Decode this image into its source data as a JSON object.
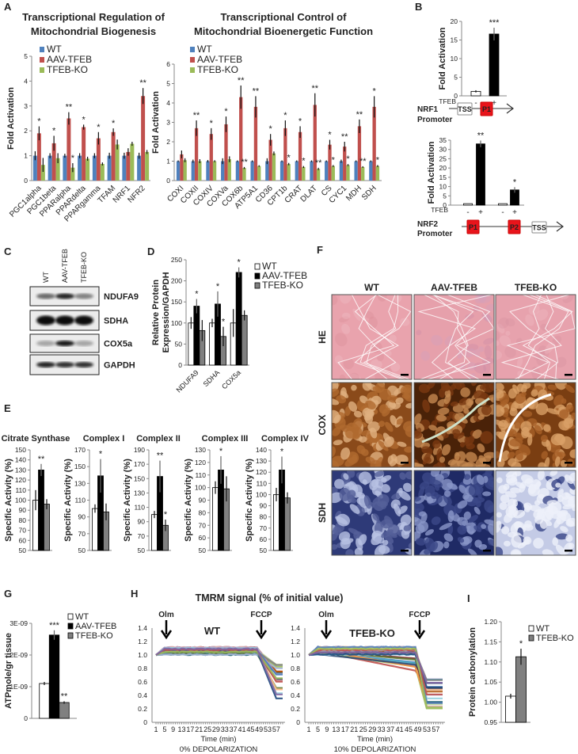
{
  "panels": {
    "a": "A",
    "b": "B",
    "c": "C",
    "d": "D",
    "e": "E",
    "f": "F",
    "g": "G",
    "h": "H",
    "i": "I"
  },
  "panel_a": {
    "title_left": [
      "Transcriptional Regulation of",
      "Mitochondrial Biogenesis"
    ],
    "title_right": [
      "Transcriptional Control of",
      "Mitochondrial Bioenergetic Function"
    ]
  },
  "panel_b": {
    "tfeb": "TFEB",
    "nrf1": "NRF1",
    "nrf2": "NRF2",
    "promoter": "Promoter",
    "tss": "TSS",
    "p1": "P1",
    "p2": "P2"
  },
  "panel_c": {
    "lanes": [
      "WT",
      "AAV-TFEB",
      "TFEB-KO"
    ],
    "proteins": [
      "NDUFA9",
      "SDHA",
      "COX5a",
      "GAPDH"
    ]
  },
  "panel_e": {
    "titles": [
      "Citrate Synthase",
      "Complex I",
      "Complex II",
      "Complex III",
      "Complex IV"
    ]
  },
  "panel_f": {
    "columns": [
      "WT",
      "AAV-TFEB",
      "TFEB-KO"
    ],
    "rows": [
      "HE",
      "COX",
      "SDH"
    ]
  },
  "panel_h": {
    "title": "TMRM signal (% of initial value)"
  },
  "chart_data": [
    {
      "type": "bar",
      "ylabel": "Fold Activation",
      "ylim": [
        0,
        5
      ],
      "yticks": [
        "0",
        "1",
        "2",
        "3",
        "4",
        "5"
      ],
      "legend": "top-left",
      "categories": [
        "PGC1alpha",
        "PGC1beta",
        "PPARalpha",
        "PPARdelta",
        "PPARgamma",
        "TFAM",
        "NRF1",
        "NFR2"
      ],
      "series": [
        {
          "name": "WT",
          "color": "#4f81bd",
          "values": [
            1,
            1,
            1,
            1,
            1,
            1,
            1,
            1
          ],
          "errors": [
            0.18,
            0.1,
            0.08,
            0.1,
            0.1,
            0.12,
            0.12,
            0.12
          ],
          "stars": [
            "",
            "",
            "",
            "",
            "",
            "",
            "",
            ""
          ]
        },
        {
          "name": "AAV-TFEB",
          "color": "#c0504d",
          "values": [
            1.9,
            1.5,
            2.5,
            2.15,
            1.7,
            1.95,
            1.15,
            3.4
          ],
          "errors": [
            0.28,
            0.3,
            0.25,
            0.1,
            0.25,
            0.15,
            0.15,
            0.32
          ],
          "stars": [
            "*",
            "*",
            "**",
            "*",
            "*",
            "*",
            "",
            "**"
          ]
        },
        {
          "name": "TFEB-KO",
          "color": "#9bbb59",
          "values": [
            0.63,
            0.9,
            0.52,
            0.88,
            0.67,
            1.45,
            1.48,
            1.15
          ],
          "errors": [
            0.28,
            0.2,
            0.18,
            0.08,
            0.06,
            0.2,
            0.08,
            0.08
          ],
          "stars": [
            "",
            "",
            "*",
            "",
            "",
            "",
            "",
            ""
          ]
        }
      ]
    },
    {
      "type": "bar",
      "ylabel": "Fold Activation",
      "ylim": [
        0,
        6
      ],
      "yticks": [
        "0",
        "1",
        "2",
        "3",
        "4",
        "5",
        "6"
      ],
      "legend": "top-left",
      "categories": [
        "COXI",
        "COXII",
        "COXIV",
        "COXVa",
        "COX6b",
        "ATP5A1",
        "CD36",
        "CPT1b",
        "CRAT",
        "DLAT",
        "CS",
        "CYC1",
        "MDH",
        "SDH"
      ],
      "series": [
        {
          "name": "WT",
          "color": "#4f81bd",
          "values": [
            1,
            1,
            1,
            1,
            1,
            1,
            1,
            1,
            1,
            1,
            1,
            1,
            1,
            1
          ],
          "errors": [
            0.04,
            0.08,
            0.06,
            0.15,
            0.04,
            0.04,
            0.15,
            0.04,
            0.04,
            0.04,
            0.04,
            0.08,
            0.04,
            0.04
          ],
          "stars": [
            "",
            "",
            "",
            "",
            "",
            "",
            "",
            "",
            "",
            "",
            "",
            "",
            "",
            ""
          ]
        },
        {
          "name": "AAV-TFEB",
          "color": "#c0504d",
          "values": [
            1.35,
            2.7,
            2.4,
            2.9,
            4.3,
            3.8,
            2.1,
            2.7,
            2.5,
            3.9,
            1.85,
            1.75,
            2.8,
            3.8
          ],
          "errors": [
            0.2,
            0.4,
            0.3,
            0.4,
            0.6,
            0.55,
            0.3,
            0.4,
            0.3,
            0.6,
            0.25,
            0.25,
            0.35,
            0.55
          ],
          "stars": [
            "",
            "**",
            "*",
            "*",
            "**",
            "**",
            "*",
            "*",
            "*",
            "**",
            "*",
            "**",
            "**",
            "*"
          ]
        },
        {
          "name": "TFEB-KO",
          "color": "#9bbb59",
          "values": [
            1.05,
            1.0,
            1.0,
            1.1,
            0.65,
            0.75,
            1.4,
            0.85,
            0.7,
            0.6,
            0.75,
            0.8,
            0.7,
            0.75
          ],
          "errors": [
            0.1,
            0.1,
            0.05,
            0.15,
            0.05,
            0.04,
            0.1,
            0.06,
            0.05,
            0.06,
            0.05,
            0.05,
            0.04,
            0.05
          ],
          "stars": [
            "",
            "",
            "",
            "",
            "**",
            "",
            "",
            "*",
            "*",
            "**",
            "*",
            "*",
            "**",
            "*"
          ]
        }
      ]
    },
    {
      "type": "bar",
      "ylabel": "Fold Activation",
      "ylim": [
        0,
        20
      ],
      "yticks": [
        "0",
        "5",
        "10",
        "15",
        "20"
      ],
      "categories": [
        "-",
        "+"
      ],
      "series": [
        {
          "colors": [
            "#ffffff",
            "#000000"
          ],
          "values": [
            1.2,
            16.6
          ],
          "errors": [
            0.3,
            1.7
          ],
          "stars": [
            "",
            "***"
          ]
        }
      ]
    },
    {
      "type": "bar",
      "ylabel": "Fold Activation",
      "ylim": [
        0,
        35
      ],
      "yticks": [
        "0",
        "5",
        "10",
        "15",
        "20",
        "25",
        "30",
        "35"
      ],
      "categories": [
        "-",
        "+",
        "-",
        "+"
      ],
      "series": [
        {
          "colors": [
            "#ffffff",
            "#000000",
            "#ffffff",
            "#000000"
          ],
          "values": [
            0.8,
            33,
            0.8,
            8.2
          ],
          "errors": [
            0,
            1.8,
            0,
            1.5
          ],
          "stars": [
            "",
            "**",
            "",
            "*"
          ]
        }
      ]
    },
    {
      "type": "bar",
      "ylabel": [
        "Relative Protein",
        "Expression/GAPDH"
      ],
      "ylim": [
        0,
        250
      ],
      "yticks": [
        "0",
        "50",
        "100",
        "150",
        "200",
        "250"
      ],
      "legend": "right",
      "categories": [
        "NDUFA9",
        "SDHA",
        "COX5a"
      ],
      "series": [
        {
          "name": "WT",
          "color": "#ffffff",
          "values": [
            100,
            100,
            100
          ],
          "errors": [
            14,
            10,
            33
          ],
          "stars": [
            "",
            "",
            ""
          ]
        },
        {
          "name": "AAV-TFEB",
          "color": "#000000",
          "values": [
            140,
            145,
            220
          ],
          "errors": [
            17,
            30,
            12
          ],
          "stars": [
            "*",
            "*",
            "*"
          ]
        },
        {
          "name": "TFEB-KO",
          "color": "#808080",
          "values": [
            82,
            68,
            118
          ],
          "errors": [
            25,
            23,
            12
          ],
          "stars": [
            "",
            "*",
            ""
          ]
        }
      ]
    },
    {
      "type": "bar",
      "title": "Citrate Synthase",
      "ylabel": "Specific Activity (%)",
      "ylim": [
        50,
        150
      ],
      "yticks": [
        "50",
        "60",
        "70",
        "80",
        "90",
        "100",
        "110",
        "120",
        "130",
        "140",
        "150"
      ],
      "categories": [
        ""
      ],
      "series": [
        {
          "name": "WT",
          "color": "#ffffff",
          "values": [
            100
          ],
          "errors": [
            10
          ],
          "stars": [
            ""
          ]
        },
        {
          "name": "AAV-TFEB",
          "color": "#000000",
          "values": [
            130
          ],
          "errors": [
            6
          ],
          "stars": [
            "**"
          ]
        },
        {
          "name": "TFEB-KO",
          "color": "#808080",
          "values": [
            96
          ],
          "errors": [
            5
          ],
          "stars": [
            ""
          ]
        }
      ]
    },
    {
      "type": "bar",
      "title": "Complex I",
      "ylabel": "Specific Activity (%)",
      "ylim": [
        50,
        170
      ],
      "yticks": [
        "50",
        "70",
        "90",
        "110",
        "130",
        "150",
        "170"
      ],
      "categories": [
        ""
      ],
      "series": [
        {
          "name": "WT",
          "color": "#ffffff",
          "values": [
            100
          ],
          "errors": [
            5
          ],
          "stars": [
            ""
          ]
        },
        {
          "name": "AAV-TFEB",
          "color": "#000000",
          "values": [
            139
          ],
          "errors": [
            20
          ],
          "stars": [
            "*"
          ]
        },
        {
          "name": "TFEB-KO",
          "color": "#808080",
          "values": [
            96
          ],
          "errors": [
            10
          ],
          "stars": [
            ""
          ]
        }
      ]
    },
    {
      "type": "bar",
      "title": "Complex II",
      "ylabel": "Specific Activity (%)",
      "ylim": [
        50,
        190
      ],
      "yticks": [
        "50",
        "70",
        "90",
        "110",
        "130",
        "150",
        "170",
        "190"
      ],
      "categories": [
        ""
      ],
      "series": [
        {
          "name": "WT",
          "color": "#ffffff",
          "values": [
            100
          ],
          "errors": [
            5
          ],
          "stars": [
            ""
          ]
        },
        {
          "name": "AAV-TFEB",
          "color": "#000000",
          "values": [
            153
          ],
          "errors": [
            22
          ],
          "stars": [
            "**"
          ]
        },
        {
          "name": "TFEB-KO",
          "color": "#808080",
          "values": [
            85
          ],
          "errors": [
            8
          ],
          "stars": [
            "*"
          ]
        }
      ]
    },
    {
      "type": "bar",
      "title": "Complex III",
      "ylabel": "Specific Activity (%)",
      "ylim": [
        50,
        130
      ],
      "yticks": [
        "50",
        "60",
        "70",
        "80",
        "90",
        "100",
        "110",
        "120",
        "130"
      ],
      "categories": [
        ""
      ],
      "series": [
        {
          "name": "WT",
          "color": "#ffffff",
          "values": [
            100
          ],
          "errors": [
            5
          ],
          "stars": [
            ""
          ]
        },
        {
          "name": "AAV-TFEB",
          "color": "#000000",
          "values": [
            114
          ],
          "errors": [
            11
          ],
          "stars": [
            "*"
          ]
        },
        {
          "name": "TFEB-KO",
          "color": "#808080",
          "values": [
            99
          ],
          "errors": [
            10
          ],
          "stars": [
            ""
          ]
        }
      ]
    },
    {
      "type": "bar",
      "title": "Complex IV",
      "ylabel": "Specific Activity (%)",
      "ylim": [
        50,
        140
      ],
      "yticks": [
        "50",
        "60",
        "70",
        "80",
        "90",
        "100",
        "110",
        "120",
        "130",
        "140"
      ],
      "categories": [
        ""
      ],
      "series": [
        {
          "name": "WT",
          "color": "#ffffff",
          "values": [
            100
          ],
          "errors": [
            6
          ],
          "stars": [
            ""
          ]
        },
        {
          "name": "AAV-TFEB",
          "color": "#000000",
          "values": [
            122
          ],
          "errors": [
            12
          ],
          "stars": [
            "*"
          ]
        },
        {
          "name": "TFEB-KO",
          "color": "#808080",
          "values": [
            97
          ],
          "errors": [
            5
          ],
          "stars": [
            ""
          ]
        }
      ]
    },
    {
      "type": "bar",
      "ylabel": "ATPmole/gr tissue",
      "ylim": [
        0,
        3e-09
      ],
      "yticks": [
        "0",
        "1E-09",
        "2E-09",
        "3E-09"
      ],
      "legend": "top-right",
      "categories": [
        ""
      ],
      "series": [
        {
          "name": "WT",
          "color": "#ffffff",
          "values": [
            1.1e-09
          ],
          "errors": [
            5e-11
          ],
          "stars": [
            ""
          ]
        },
        {
          "name": "AAV-TFEB",
          "color": "#000000",
          "values": [
            2.63e-09
          ],
          "errors": [
            1.5e-10
          ],
          "stars": [
            "***"
          ]
        },
        {
          "name": "TFEB-KO",
          "color": "#808080",
          "values": [
            5e-10
          ],
          "errors": [
            4e-11
          ],
          "stars": [
            "**"
          ]
        }
      ]
    },
    {
      "type": "line",
      "label": "WT",
      "xlabel": "Time (min)",
      "subtitle": "0% DEPOLARIZATION",
      "ylim": [
        0,
        1.4
      ],
      "yticks": [
        "0",
        "0.2",
        "0.4",
        "0.6",
        "0.8",
        "1.0",
        "1.2",
        "1.4"
      ],
      "xticks": [
        "1",
        "5",
        "9",
        "13",
        "17",
        "21",
        "25",
        "29",
        "33",
        "37",
        "41",
        "45",
        "49",
        "53",
        "57"
      ],
      "annotations": [
        "Olm",
        "FCCP"
      ]
    },
    {
      "type": "line",
      "label": "TFEB-KO",
      "xlabel": "Time (min)",
      "subtitle": "10% DEPOLARIZATION",
      "ylim": [
        0,
        1.4
      ],
      "yticks": [
        "0",
        "0.2",
        "0.4",
        "0.6",
        "0.8",
        "1.0",
        "1.2",
        "1.4"
      ],
      "xticks": [
        "1",
        "5",
        "9",
        "13",
        "17",
        "21",
        "25",
        "29",
        "33",
        "37",
        "41",
        "45",
        "49",
        "53",
        "57"
      ],
      "annotations": [
        "Olm",
        "FCCP"
      ]
    },
    {
      "type": "bar",
      "ylabel": "Protein carbonylation",
      "ylim": [
        0.95,
        1.2
      ],
      "yticks": [
        "0.95",
        "1.00",
        "1.05",
        "1.10",
        "1.15",
        "1.20"
      ],
      "legend": "top-right",
      "categories": [
        ""
      ],
      "series": [
        {
          "name": "WT",
          "color": "#ffffff",
          "values": [
            1.015
          ],
          "errors": [
            0.006
          ],
          "stars": [
            ""
          ]
        },
        {
          "name": "TFEB-KO",
          "color": "#808080",
          "values": [
            1.113
          ],
          "errors": [
            0.02
          ],
          "stars": [
            "*"
          ]
        }
      ]
    }
  ]
}
